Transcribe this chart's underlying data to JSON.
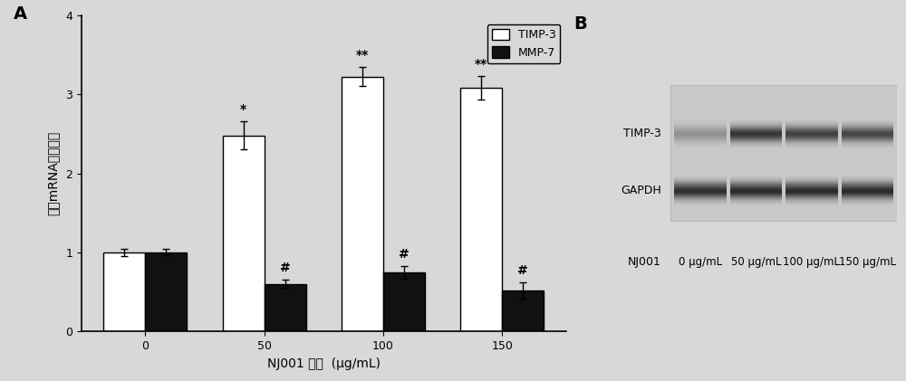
{
  "panel_A_label": "A",
  "panel_B_label": "B",
  "categories": [
    0,
    50,
    100,
    150
  ],
  "xlabel": "NJ001 浓度  (μg/mL)",
  "ylabel": "相对mRNA表达水平",
  "ylim": [
    0,
    4
  ],
  "yticks": [
    0,
    1,
    2,
    3,
    4
  ],
  "timp3_values": [
    1.0,
    2.48,
    3.22,
    3.08
  ],
  "timp3_errors": [
    0.05,
    0.18,
    0.12,
    0.15
  ],
  "mmp7_values": [
    1.0,
    0.6,
    0.75,
    0.52
  ],
  "mmp7_errors": [
    0.04,
    0.05,
    0.08,
    0.1
  ],
  "timp3_color": "#ffffff",
  "timp3_edge": "#000000",
  "mmp7_color": "#111111",
  "mmp7_edge": "#000000",
  "legend_timp3": "TIMP-3",
  "legend_mmp7": "MMP-7",
  "bar_width": 0.35,
  "significance_timp3": [
    "",
    "*",
    "**",
    "**"
  ],
  "significance_mmp7": [
    "",
    "#",
    "#",
    "#"
  ],
  "background_color": "#d8d8d8",
  "western_blot_rows": [
    "TIMP-3",
    "GAPDH"
  ],
  "western_blot_xlabel": "NJ001",
  "western_blot_cols": [
    "0 μg/mL",
    "50 μg/mL",
    "100 μg/mL",
    "150 μg/mL"
  ],
  "font_size_labels": 10,
  "font_size_ticks": 9,
  "font_size_panel": 14
}
